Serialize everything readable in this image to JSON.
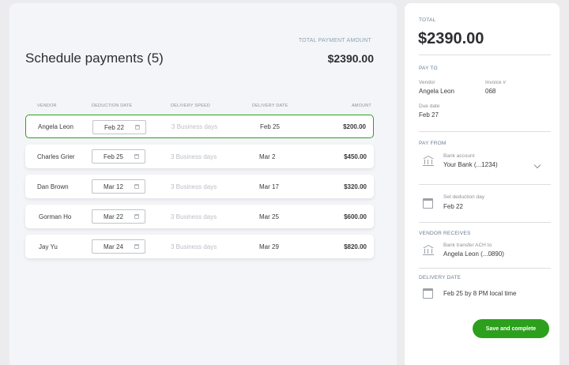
{
  "main": {
    "title": "Schedule payments (5)",
    "total_label": "TOTAL PAYMENT AMOUNT",
    "total_amount": "$2390.00",
    "columns": [
      "VENDOR",
      "DEDUCTION DATE",
      "DELIVERY SPEED",
      "DELIVERY DATE",
      "AMOUNT"
    ],
    "rows": [
      {
        "vendor": "Angela Leon",
        "deduction_date": "Feb 22",
        "speed": "3 Business days",
        "delivery_date": "Feb 25",
        "amount": "$200.00"
      },
      {
        "vendor": "Charles Grier",
        "deduction_date": "Feb 25",
        "speed": "3 Business days",
        "delivery_date": "Mar 2",
        "amount": "$450.00"
      },
      {
        "vendor": "Dan Brown",
        "deduction_date": "Mar 12",
        "speed": "3 Business days",
        "delivery_date": "Mar 17",
        "amount": "$320.00"
      },
      {
        "vendor": "Gorman Ho",
        "deduction_date": "Mar 22",
        "speed": "3 Business days",
        "delivery_date": "Mar 25",
        "amount": "$600.00"
      },
      {
        "vendor": "Jay Yu",
        "deduction_date": "Mar 24",
        "speed": "3 Business days",
        "delivery_date": "Mar 29",
        "amount": "$820.00"
      }
    ],
    "selected_row": 0
  },
  "panel": {
    "total_label": "TOTAL",
    "total_amount": "$2390.00",
    "pay_to_label": "PAY TO",
    "vendor_label": "Vendor",
    "vendor_value": "Angela Leon",
    "invoice_label": "Invoice #",
    "invoice_value": "068",
    "due_label": "Due date",
    "due_value": "Feb 27",
    "pay_from_label": "PAY FROM",
    "bank_label": "Bank account",
    "bank_value": "Your Bank (...1234)",
    "deduction_label": "Set deduction day",
    "deduction_value": "Feb 22",
    "vendor_receives_label": "VENDOR RECEIVES",
    "transfer_label": "Bank transfer ACH to",
    "transfer_value": "Angela Leon (...0890)",
    "delivery_label": "DELIVERY DATE",
    "delivery_value": "Feb 25 by 8 PM local time",
    "save_button": "Save and complete"
  },
  "icons": {
    "date_field": "calendar-icon",
    "bank": "bank-icon",
    "deduction": "calendar-icon",
    "delivery": "calendar-icon",
    "dropdown": "chevron-down-icon"
  },
  "colors": {
    "accent": "#2ca01c",
    "selected_border": "#2ca01c",
    "muted_text": "#babec5"
  }
}
